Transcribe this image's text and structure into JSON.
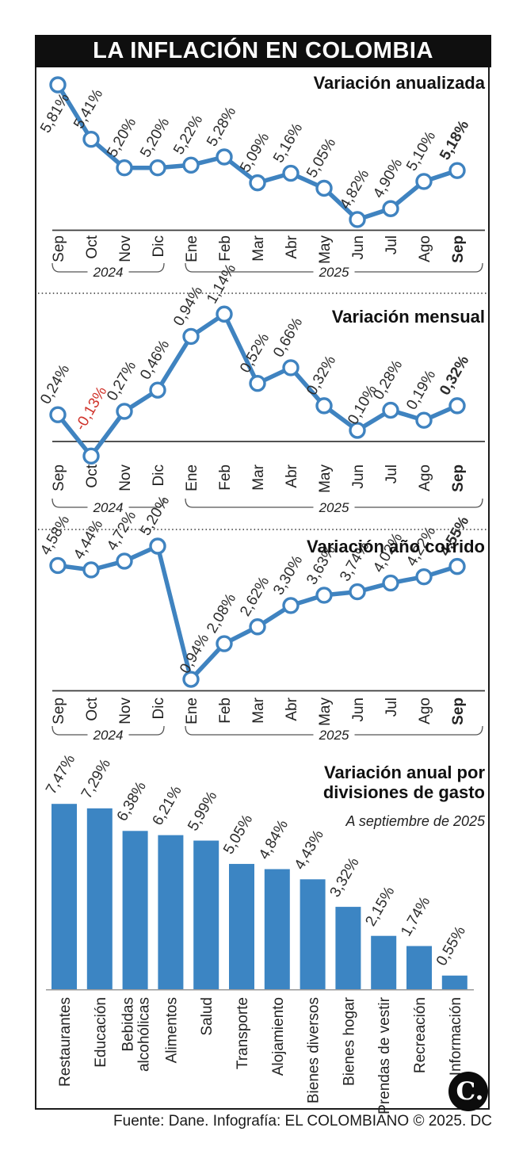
{
  "title": "LA INFLACIÓN EN COLOMBIA",
  "footer": "Fuente: Dane. Infografía: EL COLOMBIANO © 2025. DC",
  "logo": {
    "label": "C."
  },
  "colors": {
    "line": "#3f83c0",
    "marker_fill": "#ffffff",
    "bar": "#3c85c3",
    "label": "#2d2d2d",
    "negative_label": "#d0342c",
    "axis": "#3a3a3a",
    "title_bar_bg": "#0f0f0f",
    "title_bar_text": "#ffffff"
  },
  "year_groups": [
    {
      "label": "2024",
      "span": [
        0,
        3
      ]
    },
    {
      "label": "2025",
      "span": [
        4,
        12
      ]
    }
  ],
  "chart_data": [
    {
      "type": "line",
      "title": "Variación anualizada",
      "categories": [
        "Sep",
        "Oct",
        "Nov",
        "Dic",
        "Ene",
        "Feb",
        "Mar",
        "Abr",
        "May",
        "Jun",
        "Jul",
        "Ago",
        "Sep"
      ],
      "values": [
        5.81,
        5.41,
        5.2,
        5.2,
        5.22,
        5.28,
        5.09,
        5.16,
        5.05,
        4.82,
        4.9,
        5.1,
        5.18
      ],
      "labels": [
        "5,81%",
        "5,41%",
        "5,20%",
        "5,20%",
        "5,22%",
        "5,28%",
        "5,09%",
        "5,16%",
        "5,05%",
        "4,82%",
        "4,90%",
        "5,10%",
        "5,18%"
      ],
      "unit": "%",
      "ylim": [
        4.82,
        5.81
      ],
      "year_groups": [
        "2024: Sep-Dic",
        "2025: Ene-Sep"
      ],
      "legend": "none",
      "grid": false
    },
    {
      "type": "line",
      "title": "Variación mensual",
      "categories": [
        "Sep",
        "Oct",
        "Nov",
        "Dic",
        "Ene",
        "Feb",
        "Mar",
        "Abr",
        "May",
        "Jun",
        "Jul",
        "Ago",
        "Sep"
      ],
      "values": [
        0.24,
        -0.13,
        0.27,
        0.46,
        0.94,
        1.14,
        0.52,
        0.66,
        0.32,
        0.1,
        0.28,
        0.19,
        0.32
      ],
      "labels": [
        "0,24%",
        "-0,13%",
        "0,27%",
        "0,46%",
        "0,94%",
        "1,14%",
        "0,52%",
        "0,66%",
        "0,32%",
        "0,10%",
        "0,28%",
        "0,19%",
        "0,32%"
      ],
      "unit": "%",
      "ylim": [
        -0.13,
        1.14
      ],
      "zero_line": true,
      "legend": "none",
      "grid": false
    },
    {
      "type": "line",
      "title": "Variación año corrido",
      "categories": [
        "Sep",
        "Oct",
        "Nov",
        "Dic",
        "Ene",
        "Feb",
        "Mar",
        "Abr",
        "May",
        "Jun",
        "Jul",
        "Ago",
        "Sep"
      ],
      "values": [
        4.58,
        4.44,
        4.72,
        5.2,
        0.94,
        2.08,
        2.62,
        3.3,
        3.63,
        3.74,
        4.02,
        4.22,
        4.55
      ],
      "labels": [
        "4,58%",
        "4,44%",
        "4,72%",
        "5,20%",
        "0,94%",
        "2,08%",
        "2,62%",
        "3,30%",
        "3,63%",
        "3,74%",
        "4,02%",
        "4,22%",
        "4,55%"
      ],
      "unit": "%",
      "ylim": [
        0.94,
        5.2
      ],
      "legend": "none",
      "grid": false
    },
    {
      "type": "bar",
      "title": "Variación anual por divisiones de gasto",
      "subtitle": "A septiembre de 2025",
      "categories": [
        "Restaurantes",
        "Educación",
        "Bebidas\nalcohólicas",
        "Alimentos",
        "Salud",
        "Transporte",
        "Alojamiento",
        "Bienes diversos",
        "Bienes hogar",
        "Prendas de vestir",
        "Recreación",
        "Información"
      ],
      "values": [
        7.47,
        7.29,
        6.38,
        6.21,
        5.99,
        5.05,
        4.84,
        4.43,
        3.32,
        2.15,
        1.74,
        0.55
      ],
      "labels": [
        "7,47%",
        "7,29%",
        "6,38%",
        "6,21%",
        "5,99%",
        "5,05%",
        "4,84%",
        "4,43%",
        "3,32%",
        "2,15%",
        "1,74%",
        "0,55%"
      ],
      "unit": "%",
      "ylim": [
        0,
        7.5
      ],
      "legend": "none",
      "grid": false
    }
  ]
}
